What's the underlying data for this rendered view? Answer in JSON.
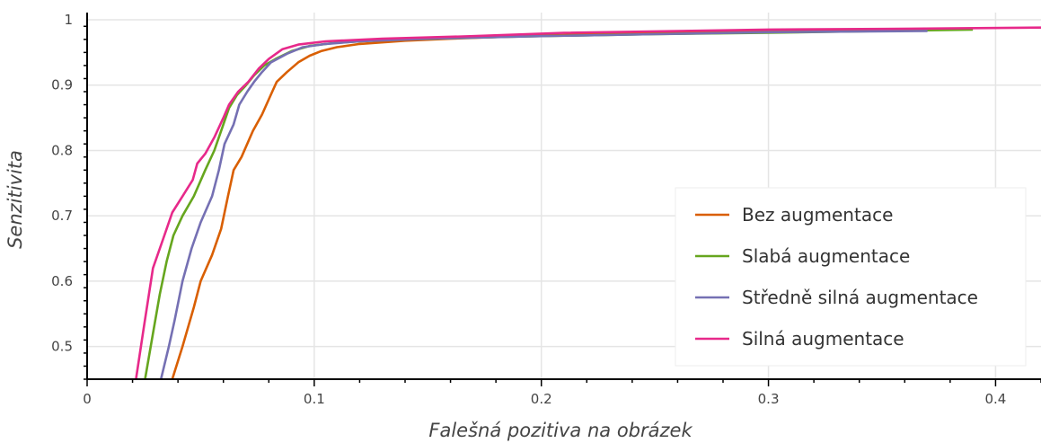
{
  "chart_data": {
    "type": "line",
    "title": "",
    "xlabel": "Falešná pozitiva na obrázek",
    "ylabel": "Senzitivita",
    "xlim": [
      0,
      0.42
    ],
    "ylim": [
      0.45,
      1.0
    ],
    "x_ticks": [
      0,
      0.1,
      0.2,
      0.3,
      0.4
    ],
    "x_tick_labels": [
      "0",
      "0.1",
      "0.2",
      "0.3",
      "0.4"
    ],
    "y_ticks": [
      0.5,
      0.6,
      0.7,
      0.8,
      0.9,
      1.0
    ],
    "y_tick_labels": [
      "0.5",
      "0.6",
      "0.7",
      "0.8",
      "0.9",
      "1"
    ],
    "grid": true,
    "legend_position": "right",
    "series": [
      {
        "name": "Bez augmentace",
        "color": "#d95f02",
        "points": [
          [
            0.0375,
            0.45
          ],
          [
            0.042,
            0.5
          ],
          [
            0.047,
            0.56
          ],
          [
            0.05,
            0.6
          ],
          [
            0.055,
            0.64
          ],
          [
            0.059,
            0.68
          ],
          [
            0.062,
            0.73
          ],
          [
            0.0645,
            0.77
          ],
          [
            0.068,
            0.79
          ],
          [
            0.073,
            0.83
          ],
          [
            0.077,
            0.855
          ],
          [
            0.0815,
            0.89
          ],
          [
            0.0835,
            0.905
          ],
          [
            0.088,
            0.92
          ],
          [
            0.093,
            0.935
          ],
          [
            0.098,
            0.945
          ],
          [
            0.103,
            0.952
          ],
          [
            0.11,
            0.958
          ],
          [
            0.12,
            0.963
          ],
          [
            0.14,
            0.968
          ],
          [
            0.16,
            0.971
          ],
          [
            0.2,
            0.976
          ],
          [
            0.25,
            0.98
          ],
          [
            0.3,
            0.982
          ],
          [
            0.35,
            0.984
          ],
          [
            0.39,
            0.986
          ]
        ]
      },
      {
        "name": "Slabá augmentace",
        "color": "#66a61e",
        "points": [
          [
            0.0255,
            0.45
          ],
          [
            0.029,
            0.52
          ],
          [
            0.032,
            0.58
          ],
          [
            0.035,
            0.63
          ],
          [
            0.038,
            0.67
          ],
          [
            0.042,
            0.7
          ],
          [
            0.047,
            0.73
          ],
          [
            0.052,
            0.77
          ],
          [
            0.056,
            0.8
          ],
          [
            0.06,
            0.84
          ],
          [
            0.0625,
            0.865
          ],
          [
            0.066,
            0.885
          ],
          [
            0.07,
            0.9
          ],
          [
            0.0735,
            0.915
          ],
          [
            0.078,
            0.93
          ],
          [
            0.083,
            0.94
          ],
          [
            0.09,
            0.952
          ],
          [
            0.098,
            0.96
          ],
          [
            0.11,
            0.965
          ],
          [
            0.13,
            0.969
          ],
          [
            0.16,
            0.972
          ],
          [
            0.2,
            0.975
          ],
          [
            0.25,
            0.978
          ],
          [
            0.3,
            0.98
          ],
          [
            0.35,
            0.983
          ],
          [
            0.39,
            0.985
          ]
        ]
      },
      {
        "name": "Středně silná augmentace",
        "color": "#7570b3",
        "points": [
          [
            0.0325,
            0.45
          ],
          [
            0.036,
            0.5
          ],
          [
            0.0385,
            0.54
          ],
          [
            0.042,
            0.6
          ],
          [
            0.046,
            0.65
          ],
          [
            0.05,
            0.69
          ],
          [
            0.055,
            0.73
          ],
          [
            0.058,
            0.77
          ],
          [
            0.0605,
            0.81
          ],
          [
            0.0645,
            0.84
          ],
          [
            0.067,
            0.87
          ],
          [
            0.0705,
            0.89
          ],
          [
            0.0735,
            0.905
          ],
          [
            0.077,
            0.92
          ],
          [
            0.081,
            0.935
          ],
          [
            0.088,
            0.948
          ],
          [
            0.095,
            0.958
          ],
          [
            0.105,
            0.963
          ],
          [
            0.12,
            0.967
          ],
          [
            0.15,
            0.971
          ],
          [
            0.2,
            0.975
          ],
          [
            0.25,
            0.978
          ],
          [
            0.3,
            0.981
          ],
          [
            0.37,
            0.983
          ]
        ]
      },
      {
        "name": "Silná augmentace",
        "color": "#e7298a",
        "points": [
          [
            0.0215,
            0.45
          ],
          [
            0.025,
            0.53
          ],
          [
            0.029,
            0.62
          ],
          [
            0.034,
            0.67
          ],
          [
            0.0375,
            0.705
          ],
          [
            0.042,
            0.73
          ],
          [
            0.0465,
            0.755
          ],
          [
            0.0485,
            0.78
          ],
          [
            0.052,
            0.795
          ],
          [
            0.056,
            0.82
          ],
          [
            0.06,
            0.85
          ],
          [
            0.0625,
            0.87
          ],
          [
            0.0665,
            0.89
          ],
          [
            0.071,
            0.905
          ],
          [
            0.0755,
            0.925
          ],
          [
            0.08,
            0.94
          ],
          [
            0.086,
            0.955
          ],
          [
            0.093,
            0.962
          ],
          [
            0.105,
            0.967
          ],
          [
            0.13,
            0.971
          ],
          [
            0.17,
            0.975
          ],
          [
            0.21,
            0.98
          ],
          [
            0.3,
            0.985
          ],
          [
            0.35,
            0.986
          ],
          [
            0.42,
            0.988
          ]
        ]
      }
    ]
  }
}
